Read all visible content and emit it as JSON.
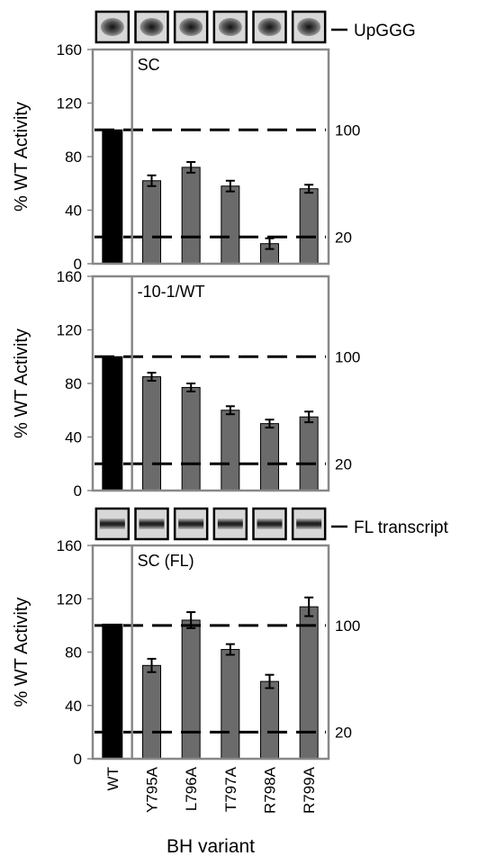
{
  "chart_data": [
    {
      "type": "bar",
      "panel_label": "SC",
      "y_label": "% WT Activity",
      "gel_label": "UpGGG",
      "ylim": [
        0,
        160
      ],
      "yticks": [
        0,
        40,
        80,
        120,
        160
      ],
      "ref_lines": [
        100,
        20
      ],
      "colors": [
        "#000000",
        "#6b6b6b",
        "#6b6b6b",
        "#6b6b6b",
        "#6b6b6b",
        "#6b6b6b"
      ],
      "values": [
        100,
        62,
        72,
        58,
        15,
        56
      ],
      "errors": [
        null,
        4,
        4,
        4,
        4,
        3
      ]
    },
    {
      "type": "bar",
      "panel_label": "-10-1/WT",
      "y_label": "% WT Activity",
      "ylim": [
        0,
        160
      ],
      "yticks": [
        0,
        40,
        80,
        120,
        160
      ],
      "ref_lines": [
        100,
        20
      ],
      "colors": [
        "#000000",
        "#6b6b6b",
        "#6b6b6b",
        "#6b6b6b",
        "#6b6b6b",
        "#6b6b6b"
      ],
      "values": [
        100,
        85,
        77,
        60,
        50,
        55
      ],
      "errors": [
        null,
        3,
        3,
        3,
        3,
        4
      ]
    },
    {
      "type": "bar",
      "panel_label": "SC (FL)",
      "y_label": "% WT Activity",
      "gel_label": "FL transcript",
      "x_label": "BH variant",
      "categories": [
        "WT",
        "Y795A",
        "L796A",
        "T797A",
        "R798A",
        "R799A"
      ],
      "ylim": [
        0,
        160
      ],
      "yticks": [
        0,
        40,
        80,
        120,
        160
      ],
      "ref_lines": [
        100,
        20
      ],
      "colors": [
        "#000000",
        "#6b6b6b",
        "#6b6b6b",
        "#6b6b6b",
        "#6b6b6b",
        "#6b6b6b"
      ],
      "values": [
        101,
        70,
        104,
        82,
        58,
        114
      ],
      "errors": [
        null,
        5,
        6,
        4,
        5,
        7
      ]
    }
  ]
}
